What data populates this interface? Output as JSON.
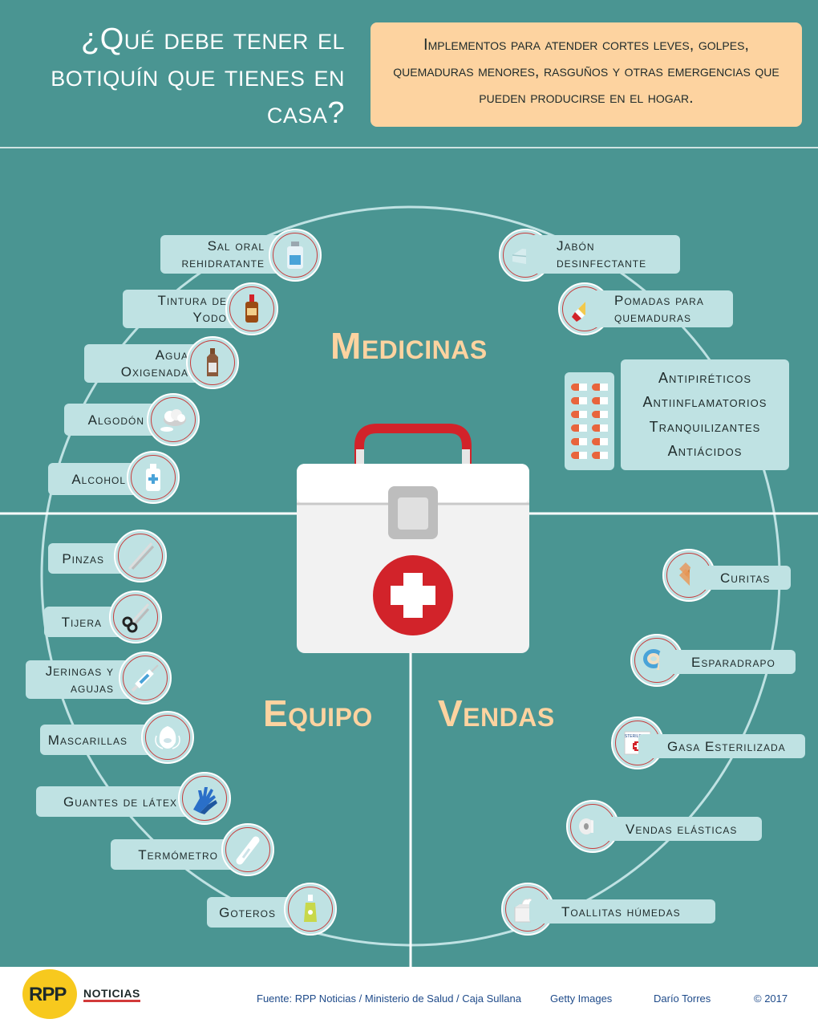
{
  "header": {
    "title": "¿Qué debe tener el botiquín que tienes en casa?",
    "subtitle": "Implementos para atender cortes leves, golpes, quemaduras menores, rasguños y otras emergencias que pueden producirse en el hogar."
  },
  "categories": {
    "medicinas": "Medicinas",
    "equipo": "Equipo",
    "vendas": "Vendas"
  },
  "medicinas_left": [
    {
      "label": "Sal oral rehidratante",
      "icon": "bottle-icon"
    },
    {
      "label": "Tintura de Yodo",
      "icon": "iodine-bottle-icon"
    },
    {
      "label": "Agua Oxigenada",
      "icon": "peroxide-bottle-icon"
    },
    {
      "label": "Algodón",
      "icon": "cotton-icon"
    },
    {
      "label": "Alcohol",
      "icon": "alcohol-bottle-icon"
    }
  ],
  "medicinas_right": [
    {
      "label": "Jabón desinfectante",
      "icon": "soap-icon"
    },
    {
      "label": "Pomadas para quemaduras",
      "icon": "ointment-tube-icon"
    }
  ],
  "med_list": [
    "Antipiréticos",
    "Antiinflamatorios",
    "Tranquilizantes",
    "Antiácidos"
  ],
  "equipo": [
    {
      "label": "Pinzas",
      "icon": "tweezers-icon"
    },
    {
      "label": "Tijera",
      "icon": "scissors-icon"
    },
    {
      "label": "Jeringas y agujas",
      "icon": "syringe-icon"
    },
    {
      "label": "Mascarillas",
      "icon": "mask-icon"
    },
    {
      "label": "Guantes de látex",
      "icon": "gloves-icon"
    },
    {
      "label": "Termómetro",
      "icon": "thermometer-icon"
    },
    {
      "label": "Goteros",
      "icon": "dropper-icon"
    }
  ],
  "vendas": [
    {
      "label": "Curitas",
      "icon": "bandaid-icon"
    },
    {
      "label": "Esparadrapo",
      "icon": "tape-icon"
    },
    {
      "label": "Gasa Esterilizada",
      "icon": "gauze-icon",
      "pack_text": "STERILE PAD"
    },
    {
      "label": "Vendas elásticas",
      "icon": "elastic-bandage-icon"
    },
    {
      "label": "Toallitas húmedas",
      "icon": "wipes-icon"
    }
  ],
  "footer": {
    "logo_text": "RPP",
    "logo_sub": "NOTICIAS",
    "source": "Fuente: RPP Noticias / Ministerio de Salud / Caja Sullana",
    "images": "Getty Images",
    "author": "Darío Torres",
    "copyright": "© 2017"
  },
  "colors": {
    "background": "#4a9592",
    "label_bg": "#bfe2e3",
    "accent": "#fdd3a0",
    "red": "#d2232a"
  }
}
